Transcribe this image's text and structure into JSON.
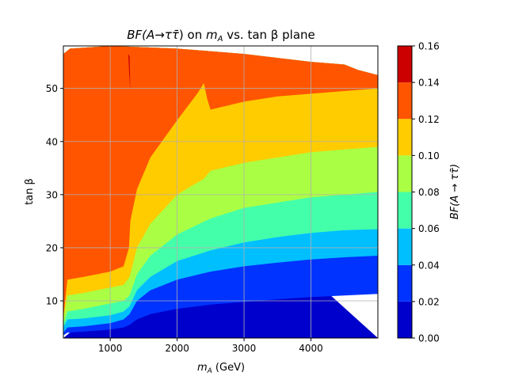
{
  "chart_data": {
    "type": "heatmap",
    "title": "BF(A→ττ̄) on m_A vs. tan β plane",
    "title_parts": {
      "main": "BF(A",
      "arrow": "→",
      "tau": "ττ̄",
      "on": ") on ",
      "mA": "m",
      "mA_sub": "A",
      "vs": " vs. tan β plane"
    },
    "xlabel": "m_A (GeV)",
    "xlabel_parts": {
      "m": "m",
      "sub": "A",
      "unit": " (GeV)"
    },
    "ylabel": "tan β",
    "colorbar_label": "BF(A → ττ̄)",
    "x_ticks": [
      1000,
      2000,
      3000,
      4000
    ],
    "x_tick_labels": [
      "1000",
      "2000",
      "3000",
      "4000"
    ],
    "y_ticks": [
      10,
      20,
      30,
      40,
      50
    ],
    "y_tick_labels": [
      "10",
      "20",
      "30",
      "40",
      "50"
    ],
    "xlim": [
      300,
      5000
    ],
    "ylim": [
      3,
      58
    ],
    "grid": true,
    "colorbar": {
      "levels": [
        0.0,
        0.02,
        0.04,
        0.06,
        0.08,
        0.1,
        0.12,
        0.14,
        0.16
      ],
      "tick_labels": [
        "0.00",
        "0.02",
        "0.04",
        "0.06",
        "0.08",
        "0.10",
        "0.12",
        "0.14",
        "0.16"
      ],
      "colors": [
        "#0000cc",
        "#0033ff",
        "#00bfff",
        "#44ffaa",
        "#aaff44",
        "#ffcc00",
        "#ff5500",
        "#cc0000"
      ]
    },
    "contours": [
      {
        "level": 0.02,
        "x": [
          300,
          360,
          600,
          800,
          1000,
          1200,
          1290,
          1400,
          1600,
          2000,
          2500,
          3000,
          3500,
          4000,
          4500,
          5000
        ],
        "y": [
          3.5,
          4.0,
          4.2,
          4.4,
          4.6,
          5.0,
          5.5,
          6.5,
          7.5,
          8.5,
          9.3,
          9.8,
          10.3,
          10.7,
          11.0,
          11.3
        ]
      },
      {
        "level": 0.04,
        "x": [
          300,
          360,
          600,
          800,
          1000,
          1200,
          1290,
          1400,
          1600,
          2000,
          2500,
          3000,
          3500,
          4000,
          4500,
          5000
        ],
        "y": [
          4.0,
          5.0,
          5.2,
          5.5,
          5.8,
          6.5,
          7.5,
          10.0,
          12.0,
          14.0,
          15.5,
          16.5,
          17.2,
          17.8,
          18.2,
          18.5
        ]
      },
      {
        "level": 0.06,
        "x": [
          300,
          360,
          600,
          800,
          1000,
          1200,
          1290,
          1400,
          1600,
          2000,
          2500,
          3000,
          3500,
          4000,
          4500,
          5000
        ],
        "y": [
          5.0,
          6.5,
          6.7,
          7.0,
          7.3,
          8.0,
          9.0,
          12.0,
          14.5,
          17.5,
          19.5,
          21.0,
          22.0,
          22.8,
          23.3,
          23.5
        ]
      },
      {
        "level": 0.08,
        "x": [
          300,
          360,
          600,
          800,
          1000,
          1200,
          1290,
          1400,
          1600,
          2000,
          2500,
          3000,
          3500,
          4000,
          4500,
          5000
        ],
        "y": [
          5.5,
          8.0,
          8.5,
          9.0,
          9.5,
          10.0,
          11.0,
          15.0,
          18.5,
          22.5,
          25.5,
          27.5,
          28.5,
          29.5,
          30.0,
          30.5
        ]
      },
      {
        "level": 0.1,
        "x": [
          300,
          360,
          600,
          800,
          1000,
          1200,
          1290,
          1400,
          1600,
          2000,
          2400,
          2500,
          3000,
          3500,
          4000,
          4500,
          5000
        ],
        "y": [
          6.5,
          11.0,
          11.5,
          12.0,
          12.5,
          13.0,
          14.5,
          20.0,
          24.5,
          30.0,
          33.0,
          34.5,
          36.0,
          37.0,
          38.0,
          38.5,
          39.0
        ]
      },
      {
        "level": 0.12,
        "x": [
          300,
          360,
          600,
          800,
          1000,
          1200,
          1280,
          1300,
          1400,
          1600,
          2000,
          2300,
          2400,
          2450,
          2500,
          3000,
          3500,
          4000,
          4500,
          5000
        ],
        "y": [
          7.0,
          14.0,
          14.5,
          15.0,
          15.5,
          16.5,
          20.0,
          25.0,
          31.0,
          37.0,
          44.0,
          49.0,
          51.0,
          48.0,
          46.0,
          47.5,
          48.5,
          49.0,
          49.5,
          50.0
        ]
      },
      {
        "level": 0.14,
        "x": [
          1270,
          1280,
          1300,
          1290,
          1270
        ],
        "y": [
          56.5,
          53.5,
          49.5,
          56.0,
          56.5
        ]
      }
    ],
    "defined_region_top": {
      "x": [
        300,
        400,
        1000,
        2000,
        3000,
        4000,
        4500,
        4700,
        5000
      ],
      "y": [
        56.5,
        57.5,
        58.0,
        57.5,
        56.5,
        55.0,
        54.5,
        53.5,
        52.5
      ]
    }
  }
}
